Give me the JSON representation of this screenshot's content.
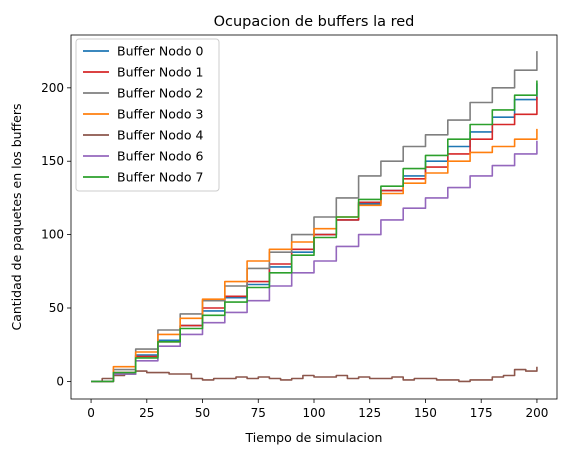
{
  "chart_data": {
    "type": "line",
    "title": "Ocupacion de buffers la red",
    "xlabel": "Tiempo de simulacion",
    "ylabel": "Cantidad de paquetes en los buffers",
    "xlim": [
      -9,
      209
    ],
    "ylim": [
      -12,
      236
    ],
    "xticks": [
      0,
      25,
      50,
      75,
      100,
      125,
      150,
      175,
      200
    ],
    "yticks": [
      0,
      50,
      100,
      150,
      200
    ],
    "grid": false,
    "legend_position": "top-left",
    "series": [
      {
        "name": "Buffer Nodo 0",
        "color": "#1f77b4",
        "x": [
          0,
          10,
          20,
          30,
          40,
          50,
          60,
          70,
          80,
          90,
          100,
          110,
          120,
          130,
          140,
          150,
          160,
          170,
          180,
          190,
          200
        ],
        "y": [
          0,
          5,
          18,
          28,
          38,
          48,
          57,
          66,
          78,
          88,
          100,
          110,
          121,
          130,
          140,
          150,
          160,
          170,
          180,
          192,
          203
        ]
      },
      {
        "name": "Buffer Nodo 1",
        "color": "#d62728",
        "x": [
          0,
          10,
          20,
          30,
          40,
          50,
          60,
          70,
          80,
          90,
          100,
          110,
          120,
          130,
          140,
          150,
          160,
          170,
          180,
          190,
          200
        ],
        "y": [
          0,
          6,
          17,
          27,
          38,
          50,
          58,
          68,
          80,
          90,
          100,
          110,
          122,
          130,
          138,
          146,
          155,
          165,
          175,
          182,
          194
        ]
      },
      {
        "name": "Buffer Nodo 2",
        "color": "#7f7f7f",
        "x": [
          0,
          10,
          20,
          30,
          40,
          50,
          60,
          70,
          80,
          90,
          100,
          110,
          120,
          130,
          140,
          150,
          160,
          170,
          180,
          190,
          200
        ],
        "y": [
          0,
          8,
          22,
          35,
          46,
          55,
          65,
          77,
          88,
          100,
          112,
          125,
          140,
          150,
          160,
          168,
          178,
          190,
          200,
          212,
          225
        ]
      },
      {
        "name": "Buffer Nodo 3",
        "color": "#ff7f0e",
        "x": [
          0,
          10,
          20,
          30,
          40,
          50,
          60,
          70,
          80,
          90,
          100,
          110,
          120,
          130,
          140,
          150,
          160,
          170,
          180,
          190,
          200
        ],
        "y": [
          0,
          10,
          20,
          32,
          43,
          56,
          68,
          82,
          90,
          95,
          104,
          112,
          120,
          128,
          135,
          142,
          150,
          156,
          160,
          165,
          172
        ]
      },
      {
        "name": "Buffer Nodo 4",
        "color": "#8c564b",
        "x": [
          0,
          5,
          10,
          15,
          20,
          25,
          30,
          35,
          40,
          45,
          50,
          55,
          60,
          65,
          70,
          75,
          80,
          85,
          90,
          95,
          100,
          105,
          110,
          115,
          120,
          125,
          130,
          135,
          140,
          145,
          150,
          155,
          160,
          165,
          170,
          175,
          180,
          185,
          190,
          195,
          200
        ],
        "y": [
          0,
          2,
          4,
          5,
          7,
          6,
          6,
          5,
          5,
          2,
          1,
          2,
          2,
          3,
          2,
          3,
          2,
          1,
          2,
          4,
          3,
          3,
          4,
          2,
          3,
          2,
          2,
          3,
          1,
          2,
          2,
          1,
          1,
          0,
          1,
          1,
          3,
          4,
          8,
          7,
          10
        ]
      },
      {
        "name": "Buffer Nodo 6",
        "color": "#9467bd",
        "x": [
          0,
          10,
          20,
          30,
          40,
          50,
          60,
          70,
          80,
          90,
          100,
          110,
          120,
          130,
          140,
          150,
          160,
          170,
          180,
          190,
          200
        ],
        "y": [
          0,
          5,
          14,
          24,
          32,
          40,
          47,
          55,
          65,
          74,
          82,
          92,
          100,
          110,
          118,
          125,
          132,
          140,
          147,
          155,
          164
        ]
      },
      {
        "name": "Buffer Nodo 7",
        "color": "#2ca02c",
        "x": [
          0,
          10,
          20,
          30,
          40,
          50,
          60,
          70,
          80,
          90,
          100,
          110,
          120,
          130,
          140,
          150,
          160,
          170,
          180,
          190,
          200
        ],
        "y": [
          0,
          6,
          16,
          27,
          36,
          45,
          54,
          64,
          74,
          86,
          98,
          112,
          124,
          133,
          145,
          154,
          165,
          175,
          185,
          195,
          205
        ]
      }
    ]
  }
}
